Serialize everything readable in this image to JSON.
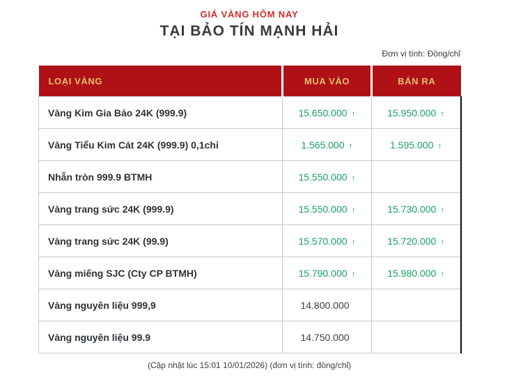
{
  "page": {
    "title_small": "GIÁ VÀNG HÔM NAY",
    "title_large": "TẠI BẢO TÍN MẠNH HẢI",
    "unit_note": "Đơn vị tính: Đồng/chỉ",
    "footer_note": "(Cập nhật lúc 15:01 10/01/2026) (đơn vị tính: đồng/chỉ)"
  },
  "colors": {
    "header_background": "#b01116",
    "header_text_gold": "#e2c06c",
    "title_red": "#d42a28",
    "price_up_green": "#18a05f",
    "label_dark": "#2d3237",
    "plain_value": "#3c4146",
    "grid_border": "#c9c9c9",
    "right_edge_border": "#0b0b0b"
  },
  "table": {
    "headers": [
      "LOẠI VÀNG",
      "MUA VÀO",
      "BÁN RA"
    ],
    "rows": [
      {
        "label": "Vàng Kim Gia Bảo 24K (999.9)",
        "buy": {
          "value": "15.650.000",
          "arrow": "↑",
          "up": "true"
        },
        "sell": {
          "value": "15.950.000",
          "arrow": "↑",
          "up": "true"
        }
      },
      {
        "label": "Vàng Tiểu Kim Cát 24K (999.9) 0,1chỉ",
        "buy": {
          "value": "1.565.000",
          "arrow": "↑",
          "up": "true"
        },
        "sell": {
          "value": "1.595.000",
          "arrow": "↑",
          "up": "true"
        }
      },
      {
        "label": "Nhẫn tròn 999.9 BTMH",
        "buy": {
          "value": "15.550.000",
          "arrow": "↑",
          "up": "true"
        },
        "sell": {
          "value": "",
          "arrow": "",
          "up": "false"
        }
      },
      {
        "label": "Vàng trang sức 24K (999.9)",
        "buy": {
          "value": "15.550.000",
          "arrow": "↑",
          "up": "true"
        },
        "sell": {
          "value": "15.730.000",
          "arrow": "↑",
          "up": "true"
        }
      },
      {
        "label": "Vàng trang sức 24K (99.9)",
        "buy": {
          "value": "15.570.000",
          "arrow": "↑",
          "up": "true"
        },
        "sell": {
          "value": "15.720.000",
          "arrow": "↑",
          "up": "true"
        }
      },
      {
        "label": "Vàng miếng SJC (Cty CP BTMH)",
        "buy": {
          "value": "15.790.000",
          "arrow": "↑",
          "up": "true"
        },
        "sell": {
          "value": "15.980.000",
          "arrow": "↑",
          "up": "true"
        }
      },
      {
        "label": "Vàng nguyên liệu 999,9",
        "buy": {
          "value": "14.800.000",
          "arrow": "",
          "up": "false"
        },
        "sell": {
          "value": "",
          "arrow": "",
          "up": "false"
        }
      },
      {
        "label": "Vàng nguyên liệu 99.9",
        "buy": {
          "value": "14.750.000",
          "arrow": "",
          "up": "false"
        },
        "sell": {
          "value": "",
          "arrow": "",
          "up": "false"
        }
      }
    ]
  }
}
